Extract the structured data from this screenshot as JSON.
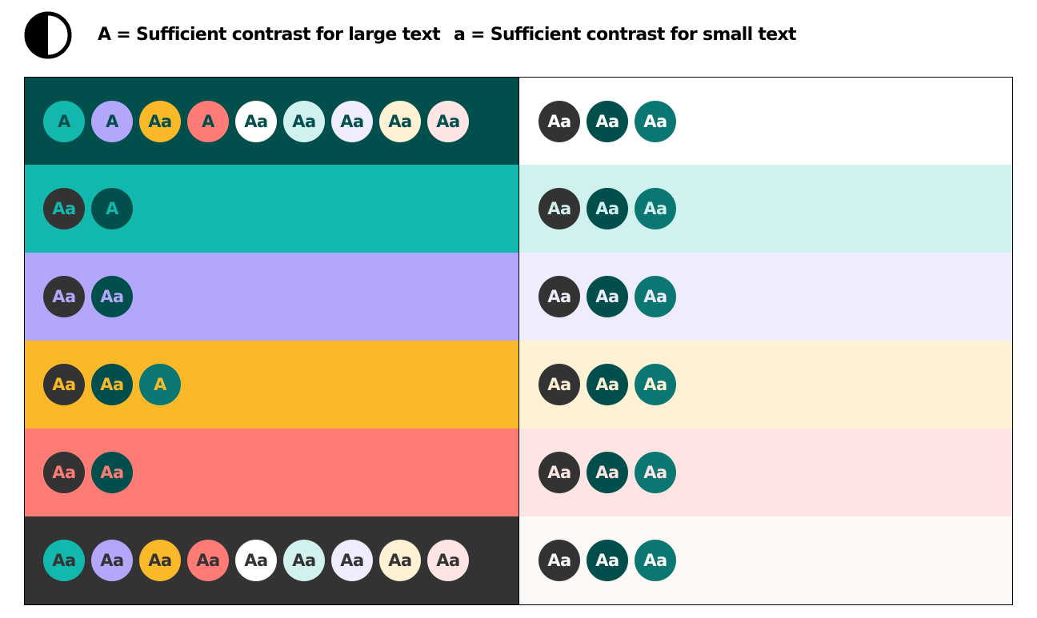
{
  "legend": {
    "large_text": "A = Sufficient contrast for large text",
    "small_text": "a = Sufficient contrast for small text"
  },
  "colors": {
    "dark_teal": "#004F4C",
    "teal": "#12B8AE",
    "purple": "#B2A7FB",
    "amber": "#FBB828",
    "coral": "#FF7B76",
    "charcoal": "#333333",
    "white": "#FFFFFF",
    "mint": "#D1F1EF",
    "lavender": "#EFECFE",
    "cream": "#FEF1D4",
    "blush": "#FFE4E4",
    "off_white": "#FBF8F6",
    "mid_teal": "#0B7772"
  },
  "rows": [
    {
      "left_bg": "#004F4C",
      "left": [
        {
          "bg": "#12B8AE",
          "fg": "#004F4C",
          "label": "A"
        },
        {
          "bg": "#B2A7FB",
          "fg": "#004F4C",
          "label": "A"
        },
        {
          "bg": "#FBB828",
          "fg": "#004F4C",
          "label": "Aa"
        },
        {
          "bg": "#FF7B76",
          "fg": "#004F4C",
          "label": "A"
        },
        {
          "bg": "#FFFFFF",
          "fg": "#004F4C",
          "label": "Aa"
        },
        {
          "bg": "#D1F1EF",
          "fg": "#004F4C",
          "label": "Aa"
        },
        {
          "bg": "#EFECFE",
          "fg": "#004F4C",
          "label": "Aa"
        },
        {
          "bg": "#FEF1D4",
          "fg": "#004F4C",
          "label": "Aa"
        },
        {
          "bg": "#FFE4E4",
          "fg": "#004F4C",
          "label": "Aa"
        }
      ],
      "right_bg": "#FFFFFF",
      "right": [
        {
          "bg": "#333333",
          "fg": "#FFFFFF",
          "label": "Aa"
        },
        {
          "bg": "#004F4C",
          "fg": "#FFFFFF",
          "label": "Aa"
        },
        {
          "bg": "#0B7772",
          "fg": "#FFFFFF",
          "label": "Aa"
        }
      ]
    },
    {
      "left_bg": "#12B8AE",
      "left": [
        {
          "bg": "#333333",
          "fg": "#12B8AE",
          "label": "Aa"
        },
        {
          "bg": "#004F4C",
          "fg": "#12B8AE",
          "label": "A"
        }
      ],
      "right_bg": "#D1F1EF",
      "right": [
        {
          "bg": "#333333",
          "fg": "#D1F1EF",
          "label": "Aa"
        },
        {
          "bg": "#004F4C",
          "fg": "#D1F1EF",
          "label": "Aa"
        },
        {
          "bg": "#0B7772",
          "fg": "#D1F1EF",
          "label": "Aa"
        }
      ]
    },
    {
      "left_bg": "#B2A7FB",
      "left": [
        {
          "bg": "#333333",
          "fg": "#B2A7FB",
          "label": "Aa"
        },
        {
          "bg": "#004F4C",
          "fg": "#B2A7FB",
          "label": "Aa"
        }
      ],
      "right_bg": "#EFECFE",
      "right": [
        {
          "bg": "#333333",
          "fg": "#EFECFE",
          "label": "Aa"
        },
        {
          "bg": "#004F4C",
          "fg": "#EFECFE",
          "label": "Aa"
        },
        {
          "bg": "#0B7772",
          "fg": "#EFECFE",
          "label": "Aa"
        }
      ]
    },
    {
      "left_bg": "#FBB828",
      "left": [
        {
          "bg": "#333333",
          "fg": "#FBB828",
          "label": "Aa"
        },
        {
          "bg": "#004F4C",
          "fg": "#FBB828",
          "label": "Aa"
        },
        {
          "bg": "#0B7772",
          "fg": "#FBB828",
          "label": "A"
        }
      ],
      "right_bg": "#FEF1D4",
      "right": [
        {
          "bg": "#333333",
          "fg": "#FEF1D4",
          "label": "Aa"
        },
        {
          "bg": "#004F4C",
          "fg": "#FEF1D4",
          "label": "Aa"
        },
        {
          "bg": "#0B7772",
          "fg": "#FEF1D4",
          "label": "Aa"
        }
      ]
    },
    {
      "left_bg": "#FF7B76",
      "left": [
        {
          "bg": "#333333",
          "fg": "#FF7B76",
          "label": "Aa"
        },
        {
          "bg": "#004F4C",
          "fg": "#FF7B76",
          "label": "Aa"
        }
      ],
      "right_bg": "#FFE4E4",
      "right": [
        {
          "bg": "#333333",
          "fg": "#FFE4E4",
          "label": "Aa"
        },
        {
          "bg": "#004F4C",
          "fg": "#FFE4E4",
          "label": "Aa"
        },
        {
          "bg": "#0B7772",
          "fg": "#FFE4E4",
          "label": "Aa"
        }
      ]
    },
    {
      "left_bg": "#333333",
      "left": [
        {
          "bg": "#12B8AE",
          "fg": "#333333",
          "label": "Aa"
        },
        {
          "bg": "#B2A7FB",
          "fg": "#333333",
          "label": "Aa"
        },
        {
          "bg": "#FBB828",
          "fg": "#333333",
          "label": "Aa"
        },
        {
          "bg": "#FF7B76",
          "fg": "#333333",
          "label": "Aa"
        },
        {
          "bg": "#FFFFFF",
          "fg": "#333333",
          "label": "Aa"
        },
        {
          "bg": "#D1F1EF",
          "fg": "#333333",
          "label": "Aa"
        },
        {
          "bg": "#EFECFE",
          "fg": "#333333",
          "label": "Aa"
        },
        {
          "bg": "#FEF1D4",
          "fg": "#333333",
          "label": "Aa"
        },
        {
          "bg": "#FFE4E4",
          "fg": "#333333",
          "label": "Aa"
        }
      ],
      "right_bg": "#FBF8F6",
      "right": [
        {
          "bg": "#333333",
          "fg": "#FBF8F6",
          "label": "Aa"
        },
        {
          "bg": "#004F4C",
          "fg": "#FBF8F6",
          "label": "Aa"
        },
        {
          "bg": "#0B7772",
          "fg": "#FBF8F6",
          "label": "Aa"
        }
      ]
    }
  ]
}
